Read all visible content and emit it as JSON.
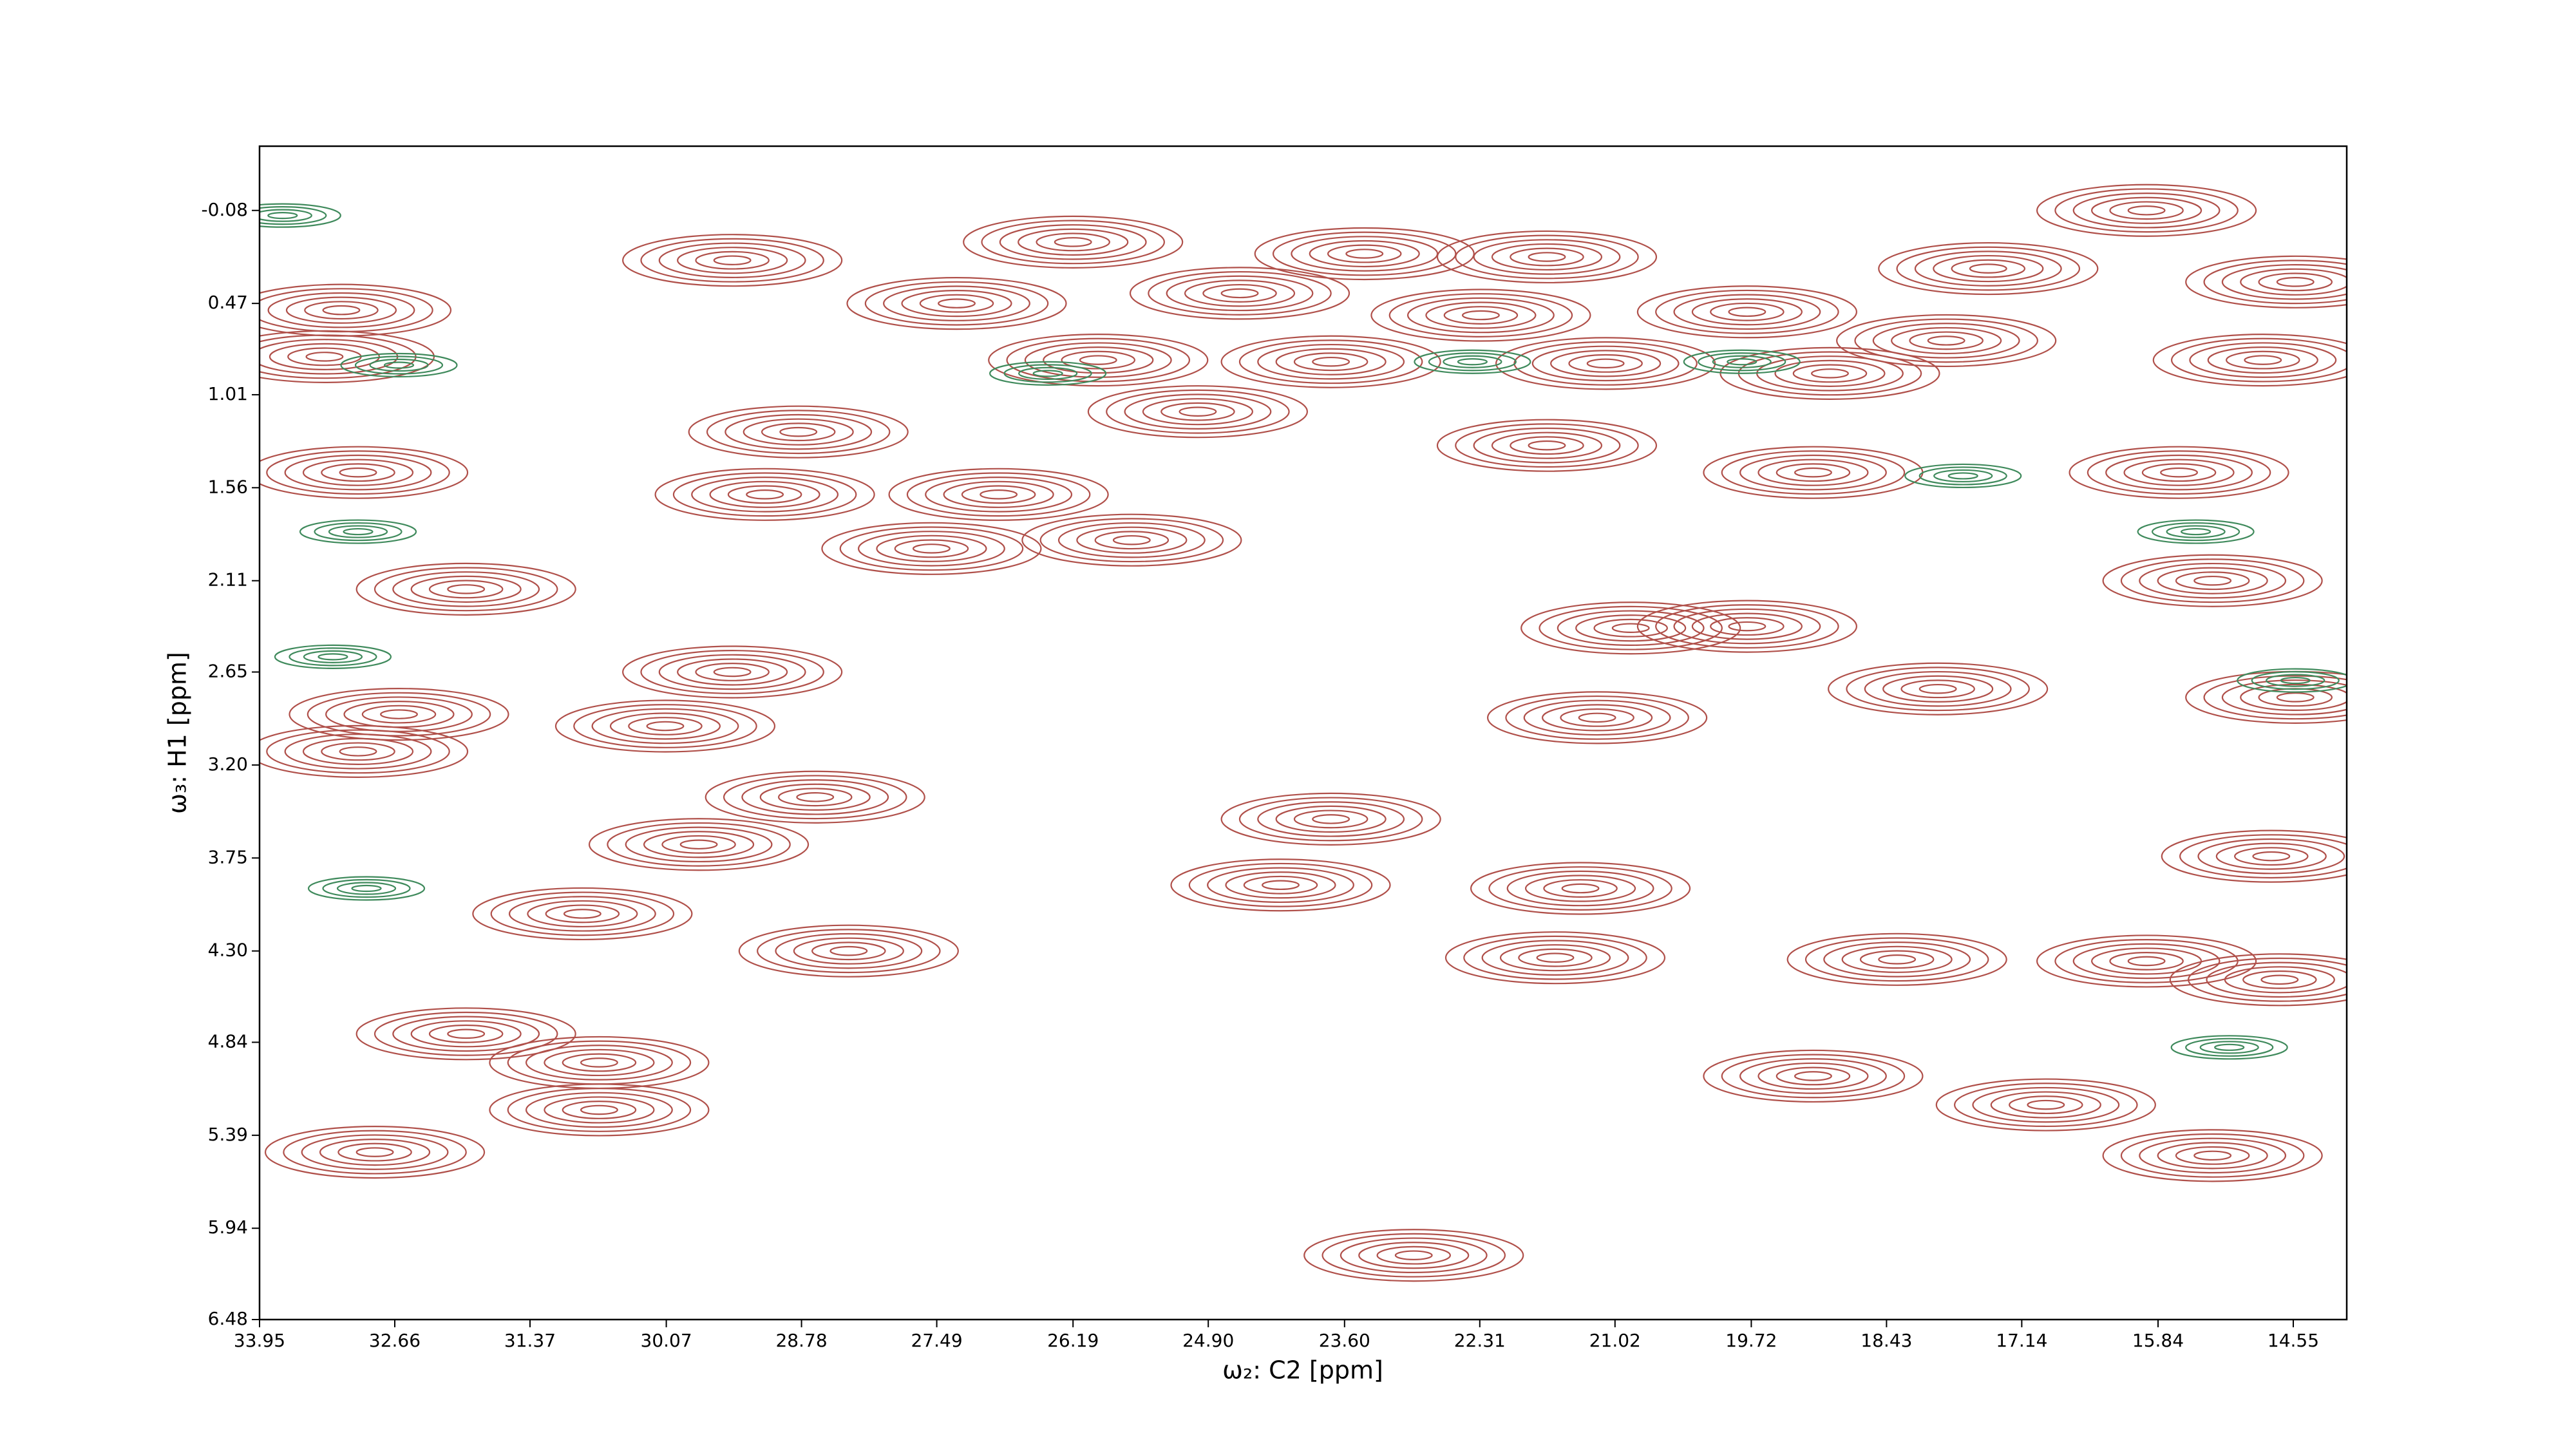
{
  "chart_data": {
    "type": "contour",
    "x_label": "ω₂: C2 [ppm]",
    "y_label": "ω₃: H1 [ppm]",
    "xlim": [
      33.95,
      14.04
    ],
    "ylim": [
      6.48,
      -0.46
    ],
    "xticks": [
      33.95,
      32.66,
      31.37,
      30.07,
      28.78,
      27.49,
      26.19,
      {
        "value": 24.9,
        "label": "24.90"
      },
      {
        "value": 23.6,
        "label": "23.60"
      },
      22.31,
      21.02,
      19.72,
      18.43,
      17.14,
      15.84,
      14.55
    ],
    "yticks": [
      -0.08,
      0.47,
      1.01,
      1.56,
      2.11,
      2.65,
      {
        "value": 3.2,
        "label": "3.20"
      },
      3.75,
      {
        "value": 4.3,
        "label": "4.30"
      },
      4.84,
      5.39,
      5.94,
      6.48
    ],
    "series": [
      {
        "name": "positive",
        "color": "#b0504a",
        "x": [
          29.44,
          26.19,
          21.67,
          23.41,
          17.46,
          15.95,
          14.53,
          27.3,
          24.6,
          33.17,
          22.3,
          19.76,
          17.86,
          23.73,
          25.95,
          21.11,
          18.97,
          14.84,
          33.33,
          25.0,
          28.81,
          21.67,
          19.13,
          15.64,
          33.01,
          29.13,
          26.9,
          27.54,
          25.63,
          31.98,
          15.32,
          20.87,
          19.76,
          29.44,
          30.08,
          21.19,
          17.94,
          14.53,
          32.62,
          33.01,
          23.73,
          28.65,
          29.76,
          24.21,
          21.35,
          14.76,
          30.87,
          28.33,
          21.59,
          18.33,
          15.95,
          14.68,
          31.98,
          30.71,
          19.13,
          16.91,
          30.71,
          32.85,
          22.94,
          15.32
        ],
        "y": [
          0.215,
          0.107,
          0.195,
          0.176,
          0.264,
          -0.08,
          0.343,
          0.47,
          0.41,
          0.51,
          0.54,
          0.52,
          0.69,
          0.815,
          0.805,
          0.825,
          0.884,
          0.805,
          0.785,
          1.11,
          1.23,
          1.31,
          1.47,
          1.47,
          1.47,
          1.6,
          1.6,
          1.92,
          1.87,
          2.16,
          2.11,
          2.39,
          2.38,
          2.65,
          2.97,
          2.92,
          2.75,
          2.8,
          2.9,
          3.12,
          3.52,
          3.39,
          3.67,
          3.91,
          3.93,
          3.74,
          4.08,
          4.3,
          4.34,
          4.35,
          4.36,
          4.47,
          4.79,
          4.96,
          5.04,
          5.21,
          5.24,
          5.49,
          6.1,
          5.51
        ]
      },
      {
        "name": "negative",
        "color": "#3f8a5c",
        "x": [
          26.43,
          22.38,
          19.81,
          17.7,
          33.01,
          15.48,
          32.62,
          33.25,
          14.53,
          32.93,
          15.16,
          33.73
        ],
        "y": [
          0.884,
          0.815,
          0.815,
          1.49,
          1.82,
          1.82,
          0.835,
          2.56,
          2.7,
          3.93,
          4.87,
          -0.05
        ]
      }
    ]
  }
}
